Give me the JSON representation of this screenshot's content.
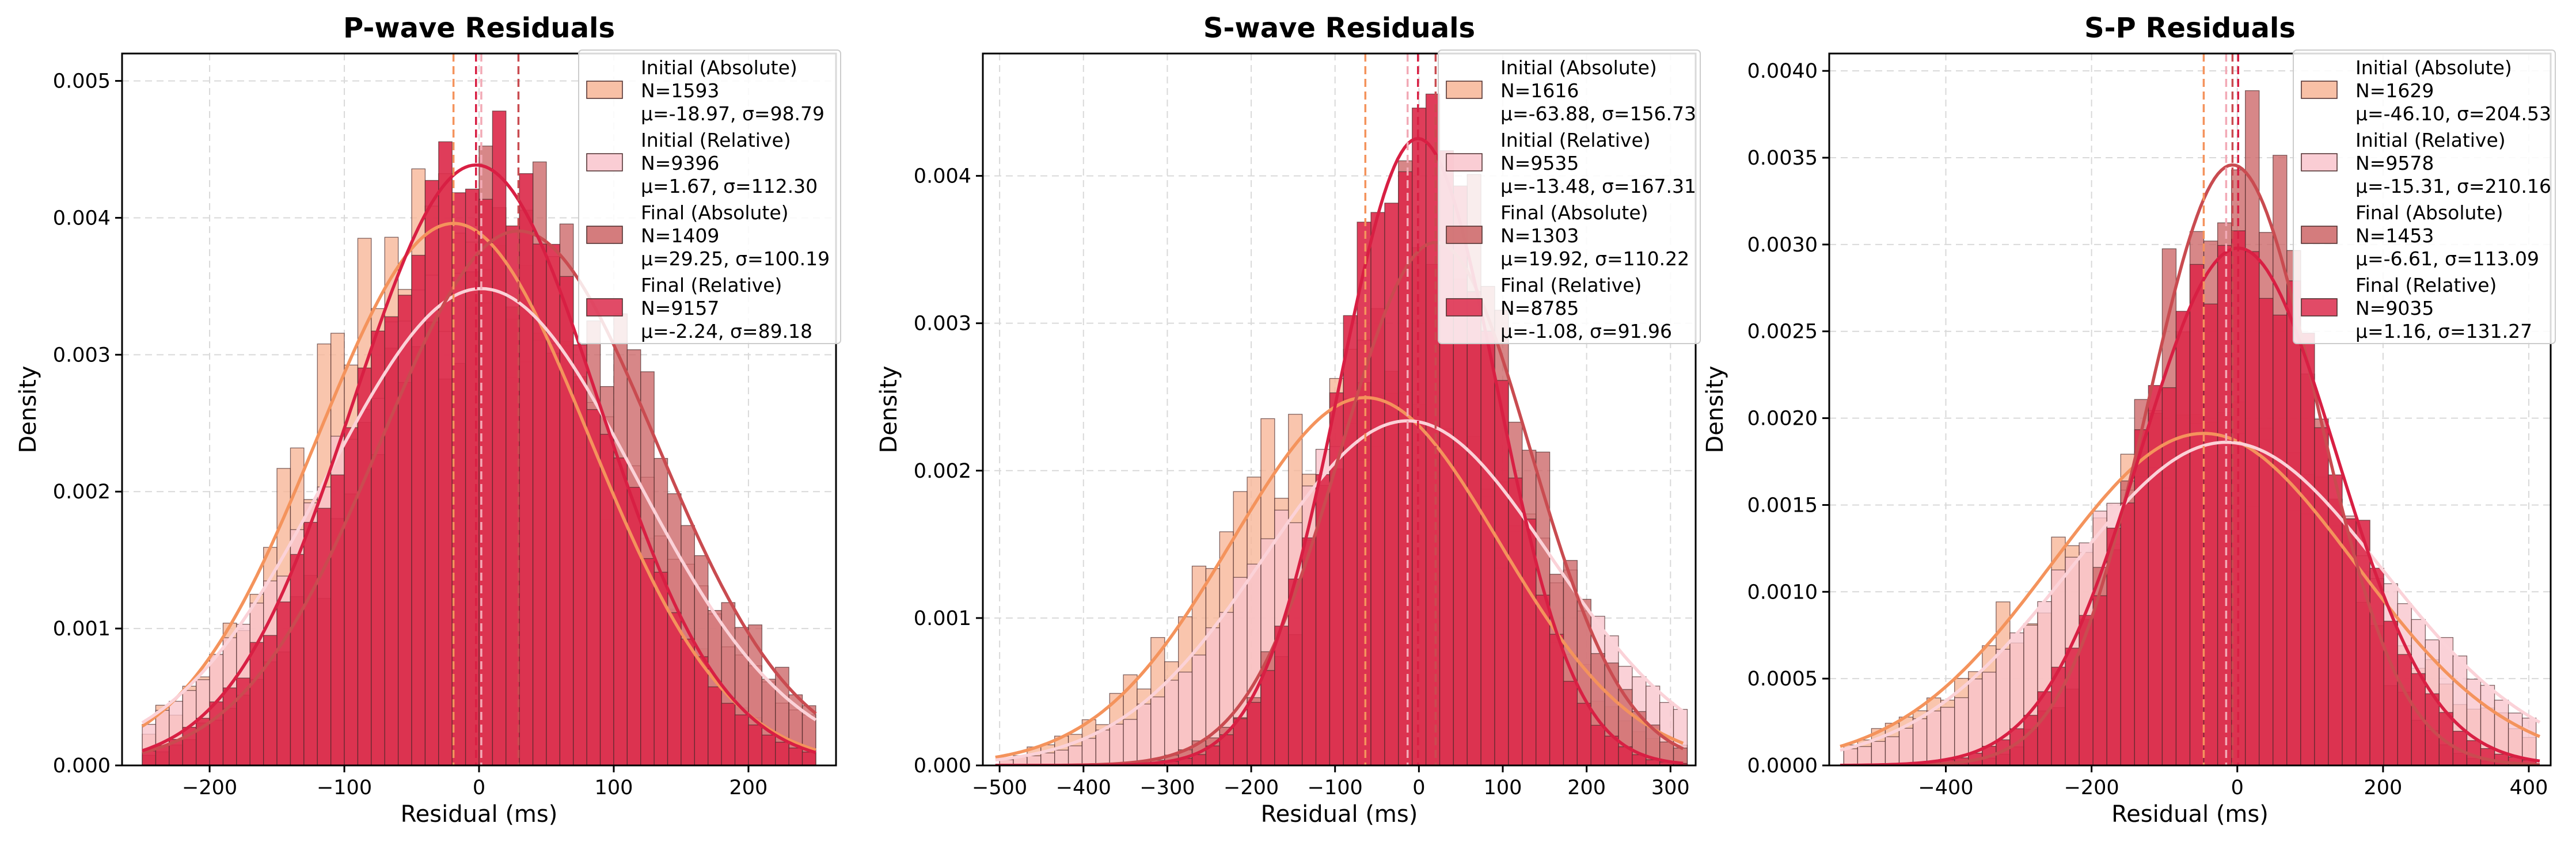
{
  "chart_data": [
    {
      "type": "bar",
      "title": "P-wave Residuals",
      "xlabel": "Residual (ms)",
      "ylabel": "Density",
      "xlim": [
        -265,
        265
      ],
      "ylim": [
        0,
        0.0052
      ],
      "xticks": [
        -200,
        -100,
        0,
        100,
        200
      ],
      "xtick_labels": [
        "−200",
        "−100",
        "0",
        "100",
        "200"
      ],
      "yticks": [
        0,
        0.001,
        0.002,
        0.003,
        0.004,
        0.005
      ],
      "ytick_labels": [
        "0.000",
        "0.001",
        "0.002",
        "0.003",
        "0.004",
        "0.005"
      ],
      "bin_range": [
        -250,
        250
      ],
      "grid": true,
      "legend_position": "top-right",
      "series": [
        {
          "name": "Initial (Absolute)",
          "legend_lines": [
            "Initial (Absolute)",
            "N=1593",
            "μ=-18.97, σ=98.79"
          ],
          "n": 1593,
          "mean": -18.97,
          "std": 98.79,
          "color": "#f7b596"
        },
        {
          "name": "Initial (Relative)",
          "legend_lines": [
            "Initial (Relative)",
            "N=9396",
            "μ=1.67, σ=112.30"
          ],
          "n": 9396,
          "mean": 1.67,
          "std": 112.3,
          "color": "#f9c4cc"
        },
        {
          "name": "Final (Absolute)",
          "legend_lines": [
            "Final (Absolute)",
            "N=1409",
            "μ=29.25, σ=100.19"
          ],
          "n": 1409,
          "mean": 29.25,
          "std": 100.19,
          "color": "#cc6566"
        },
        {
          "name": "Final (Relative)",
          "legend_lines": [
            "Final (Relative)",
            "N=9157",
            "μ=-2.24, σ=89.18"
          ],
          "n": 9157,
          "mean": -2.24,
          "std": 89.18,
          "color": "#dc2c4c"
        }
      ]
    },
    {
      "type": "bar",
      "title": "S-wave Residuals",
      "xlabel": "Residual (ms)",
      "ylabel": "Density",
      "xlim": [
        -520,
        330
      ],
      "ylim": [
        0,
        0.00483
      ],
      "xticks": [
        -500,
        -400,
        -300,
        -200,
        -100,
        0,
        100,
        200,
        300
      ],
      "xtick_labels": [
        "−500",
        "−400",
        "−300",
        "−200",
        "−100",
        "0",
        "100",
        "200",
        "300"
      ],
      "yticks": [
        0,
        0.001,
        0.002,
        0.003,
        0.004
      ],
      "ytick_labels": [
        "0.000",
        "0.001",
        "0.002",
        "0.003",
        "0.004"
      ],
      "bin_range": [
        -500,
        320
      ],
      "grid": true,
      "legend_position": "top-right",
      "series": [
        {
          "name": "Initial (Absolute)",
          "legend_lines": [
            "Initial (Absolute)",
            "N=1616",
            "μ=-63.88, σ=156.73"
          ],
          "n": 1616,
          "mean": -63.88,
          "std": 156.73,
          "color": "#f7b596"
        },
        {
          "name": "Initial (Relative)",
          "legend_lines": [
            "Initial (Relative)",
            "N=9535",
            "μ=-13.48, σ=167.31"
          ],
          "n": 9535,
          "mean": -13.48,
          "std": 167.31,
          "color": "#f9c4cc"
        },
        {
          "name": "Final (Absolute)",
          "legend_lines": [
            "Final (Absolute)",
            "N=1303",
            "μ=19.92, σ=110.22"
          ],
          "n": 1303,
          "mean": 19.92,
          "std": 110.22,
          "color": "#cc6566"
        },
        {
          "name": "Final (Relative)",
          "legend_lines": [
            "Final (Relative)",
            "N=8785",
            "μ=-1.08, σ=91.96"
          ],
          "n": 8785,
          "mean": -1.08,
          "std": 91.96,
          "color": "#dc2c4c"
        }
      ]
    },
    {
      "type": "bar",
      "title": "S-P Residuals",
      "xlabel": "Residual (ms)",
      "ylabel": "Density",
      "xlim": [
        -560,
        430
      ],
      "ylim": [
        0,
        0.0041
      ],
      "xticks": [
        -400,
        -200,
        0,
        200,
        400
      ],
      "xtick_labels": [
        "−400",
        "−200",
        "0",
        "200",
        "400"
      ],
      "yticks": [
        0,
        0.0005,
        0.001,
        0.0015,
        0.002,
        0.0025,
        0.003,
        0.0035,
        0.004
      ],
      "ytick_labels": [
        "0.0000",
        "0.0005",
        "0.0010",
        "0.0015",
        "0.0020",
        "0.0025",
        "0.0030",
        "0.0035",
        "0.0040"
      ],
      "bin_range": [
        -540,
        410
      ],
      "grid": true,
      "legend_position": "top-right",
      "series": [
        {
          "name": "Initial (Absolute)",
          "legend_lines": [
            "Initial (Absolute)",
            "N=1629",
            "μ=-46.10, σ=204.53"
          ],
          "n": 1629,
          "mean": -46.1,
          "std": 204.53,
          "color": "#f7b596"
        },
        {
          "name": "Initial (Relative)",
          "legend_lines": [
            "Initial (Relative)",
            "N=9578",
            "μ=-15.31, σ=210.16"
          ],
          "n": 9578,
          "mean": -15.31,
          "std": 210.16,
          "color": "#f9c4cc"
        },
        {
          "name": "Final (Absolute)",
          "legend_lines": [
            "Final (Absolute)",
            "N=1453",
            "μ=-6.61, σ=113.09"
          ],
          "n": 1453,
          "mean": -6.61,
          "std": 113.09,
          "color": "#cc6566"
        },
        {
          "name": "Final (Relative)",
          "legend_lines": [
            "Final (Relative)",
            "N=9035",
            "μ=1.16, σ=131.27"
          ],
          "n": 9035,
          "mean": 1.16,
          "std": 131.27,
          "color": "#dc2c4c"
        }
      ]
    }
  ]
}
